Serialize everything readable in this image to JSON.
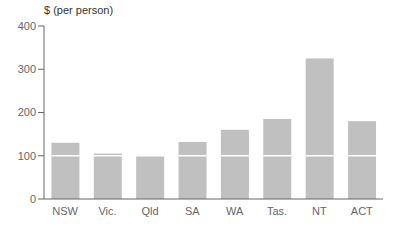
{
  "chart_data": {
    "type": "bar",
    "stacked": true,
    "ylabel": "$ (per person)",
    "categories": [
      "NSW",
      "Vic.",
      "Qld",
      "SA",
      "WA",
      "Tas.",
      "NT",
      "ACT"
    ],
    "series": [
      {
        "color": "#c0c0c0",
        "values": [
          100,
          100,
          100,
          100,
          100,
          100,
          100,
          100
        ]
      },
      {
        "color": "#c0c0c0",
        "values": [
          30,
          5,
          2,
          32,
          60,
          85,
          225,
          80
        ]
      }
    ],
    "ylim": [
      0,
      400
    ],
    "yticks": [
      0,
      100,
      200,
      300,
      400
    ],
    "grid": false
  }
}
